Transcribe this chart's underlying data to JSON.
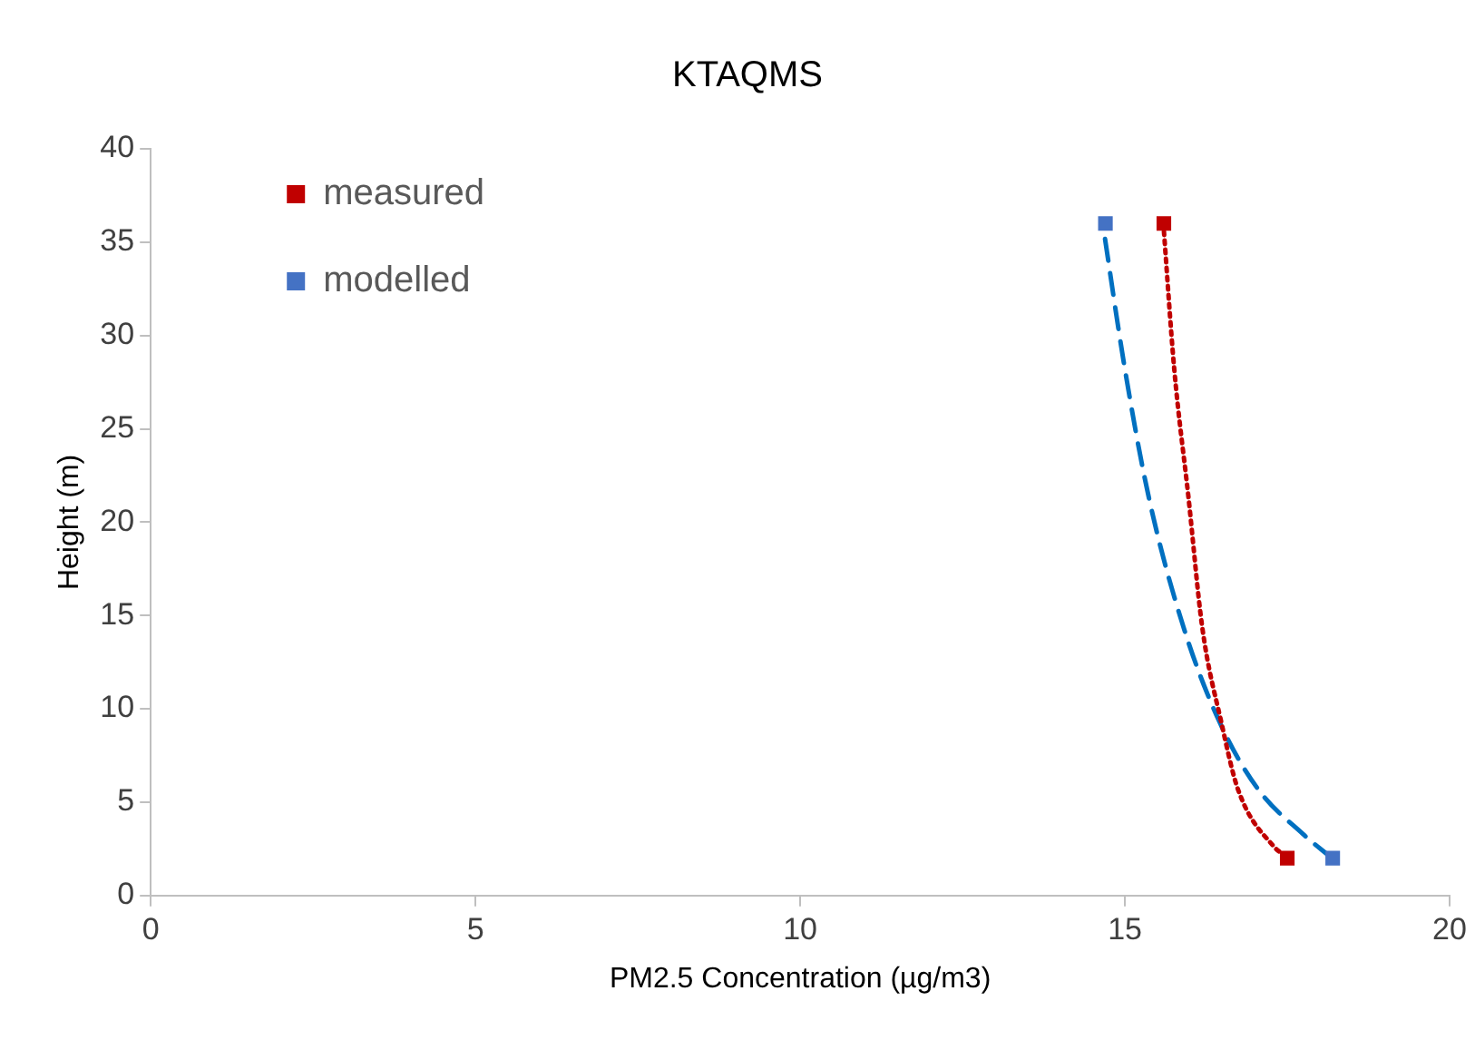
{
  "chart_data": {
    "type": "scatter",
    "title": "KTAQMS",
    "xlabel": "PM2.5 Concentration (µg/m3)",
    "ylabel": "Height (m)",
    "xlim": [
      0,
      20
    ],
    "xticks": [
      0,
      5,
      10,
      15,
      20
    ],
    "ylim": [
      0,
      40
    ],
    "yticks": [
      0,
      5,
      10,
      15,
      20,
      25,
      30,
      35,
      40
    ],
    "grid": false,
    "legend": "top left",
    "marker": "square",
    "series": [
      {
        "name": "measured",
        "color": "#c00000",
        "x": [
          17.5,
          15.6
        ],
        "values": [
          2,
          36
        ]
      },
      {
        "name": "modelled",
        "color": "#4472c4",
        "x": [
          18.2,
          14.7
        ],
        "values": [
          2,
          36
        ]
      },
      {
        "type": "line",
        "color": "#c00000",
        "line_style": "dotted",
        "marker": "none",
        "x": [
          17.49,
          17.3,
          16.74,
          16.49,
          16.19,
          15.98,
          15.76,
          15.59
        ],
        "values": [
          2.1,
          2.6,
          5.7,
          9.2,
          14.4,
          21.3,
          28.2,
          36.1
        ]
      },
      {
        "type": "line",
        "color": "#0070c0",
        "line_style": "dashed",
        "marker": "none",
        "x": [
          18.19,
          17.74,
          17.05,
          16.47,
          15.9,
          15.37,
          15.0,
          14.65
        ],
        "values": [
          2.0,
          3.3,
          5.7,
          9.2,
          14.4,
          21.3,
          28.2,
          36.2
        ]
      }
    ]
  }
}
